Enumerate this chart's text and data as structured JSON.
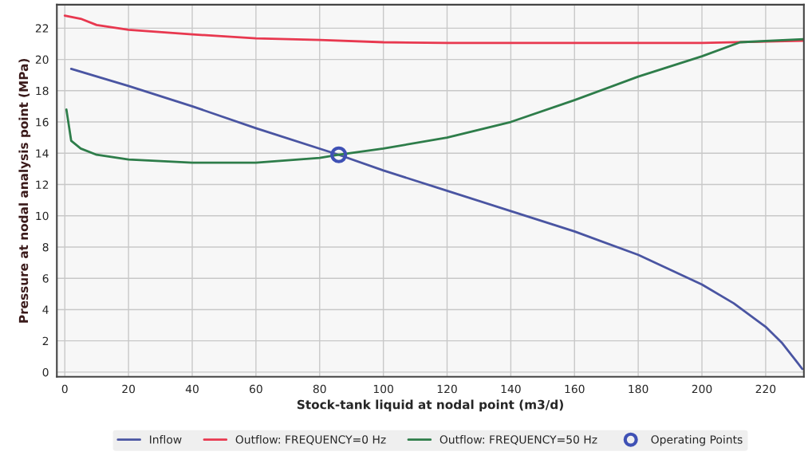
{
  "chart_data": {
    "type": "line",
    "xlabel": "Stock-tank liquid at nodal point (m3/d)",
    "ylabel": "Pressure at nodal analysis point (MPa)",
    "xlim": [
      -2.5,
      232
    ],
    "ylim": [
      -0.3,
      23.5
    ],
    "xticks": [
      0,
      20,
      40,
      60,
      80,
      100,
      120,
      140,
      160,
      180,
      200,
      220
    ],
    "yticks": [
      0,
      2,
      4,
      6,
      8,
      10,
      12,
      14,
      16,
      18,
      20,
      22
    ],
    "grid": true,
    "legend": "bottom",
    "series": [
      {
        "name": "Inflow",
        "color": "#4a55a2",
        "x": [
          2,
          20,
          40,
          60,
          86,
          100,
          120,
          140,
          160,
          180,
          200,
          210,
          220,
          225,
          230,
          231.5
        ],
        "values": [
          19.4,
          18.3,
          17.0,
          15.6,
          13.9,
          12.9,
          11.6,
          10.3,
          9.0,
          7.5,
          5.6,
          4.4,
          2.9,
          1.9,
          0.6,
          0.2
        ]
      },
      {
        "name": "Outflow: FREQUENCY=0 Hz",
        "color": "#e8384f",
        "x": [
          0,
          5,
          10,
          20,
          40,
          60,
          80,
          100,
          120,
          140,
          200,
          232
        ],
        "values": [
          22.8,
          22.6,
          22.2,
          21.9,
          21.6,
          21.35,
          21.25,
          21.1,
          21.05,
          21.05,
          21.05,
          21.2
        ]
      },
      {
        "name": "Outflow: FREQUENCY=50 Hz",
        "color": "#2e7d4a",
        "x": [
          0.5,
          2,
          5,
          10,
          20,
          40,
          60,
          80,
          86,
          100,
          120,
          140,
          160,
          180,
          200,
          212,
          232
        ],
        "values": [
          16.8,
          14.8,
          14.3,
          13.9,
          13.6,
          13.4,
          13.4,
          13.7,
          13.9,
          14.3,
          15.0,
          16.0,
          17.4,
          18.9,
          20.2,
          21.1,
          21.3
        ]
      },
      {
        "name": "Operating Points",
        "type": "scatter",
        "marker": "circle",
        "color": "#3f51b5",
        "x": [
          86
        ],
        "values": [
          13.9
        ]
      }
    ]
  }
}
